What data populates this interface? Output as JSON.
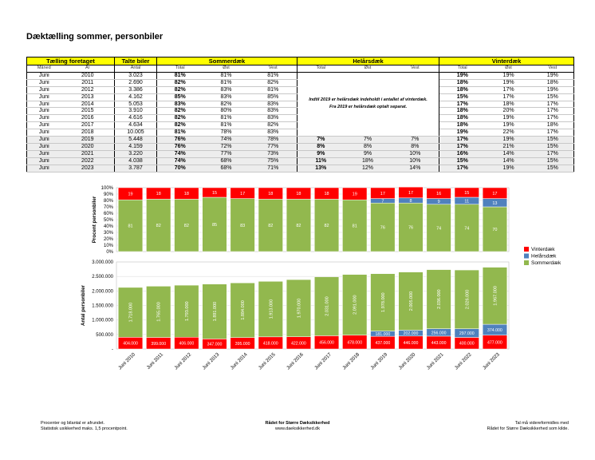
{
  "title": "Dæktælling sommer, personbiler",
  "table": {
    "groups": [
      "Tælling foretaget",
      "Talte biler",
      "Sommerdæk",
      "Helårsdæk",
      "Vinterdæk"
    ],
    "sub": {
      "maaned": "Måned",
      "aar": "År",
      "antal": "Antal",
      "total": "Total",
      "oest": "Øst",
      "vest": "Vest"
    },
    "note_line1": "Indtil 2019 er helårsdæk indeholdt i antallet af vinterdæk.",
    "note_line2": "Fra 2019 er helårsdæk optalt separat.",
    "rows": [
      {
        "m": "Juni",
        "y": "2010",
        "n": "3.023",
        "st": "81%",
        "so": "81%",
        "sv": "81%",
        "ht": "",
        "ho": "",
        "hv": "",
        "vt": "19%",
        "vo": "19%",
        "vv": "19%"
      },
      {
        "m": "Juni",
        "y": "2011",
        "n": "2.690",
        "st": "82%",
        "so": "81%",
        "sv": "82%",
        "ht": "",
        "ho": "",
        "hv": "",
        "vt": "18%",
        "vo": "19%",
        "vv": "18%"
      },
      {
        "m": "Juni",
        "y": "2012",
        "n": "3.386",
        "st": "82%",
        "so": "83%",
        "sv": "81%",
        "ht": "",
        "ho": "",
        "hv": "",
        "vt": "18%",
        "vo": "17%",
        "vv": "19%"
      },
      {
        "m": "Juni",
        "y": "2013",
        "n": "4.162",
        "st": "85%",
        "so": "83%",
        "sv": "85%",
        "ht": "",
        "ho": "",
        "hv": "",
        "vt": "15%",
        "vo": "17%",
        "vv": "15%"
      },
      {
        "m": "Juni",
        "y": "2014",
        "n": "5.053",
        "st": "83%",
        "so": "82%",
        "sv": "83%",
        "ht": "",
        "ho": "",
        "hv": "",
        "vt": "17%",
        "vo": "18%",
        "vv": "17%"
      },
      {
        "m": "Juni",
        "y": "2015",
        "n": "3.910",
        "st": "82%",
        "so": "80%",
        "sv": "83%",
        "ht": "",
        "ho": "",
        "hv": "",
        "vt": "18%",
        "vo": "20%",
        "vv": "17%"
      },
      {
        "m": "Juni",
        "y": "2016",
        "n": "4.616",
        "st": "82%",
        "so": "81%",
        "sv": "83%",
        "ht": "",
        "ho": "",
        "hv": "",
        "vt": "18%",
        "vo": "19%",
        "vv": "17%"
      },
      {
        "m": "Juni",
        "y": "2017",
        "n": "4.634",
        "st": "82%",
        "so": "81%",
        "sv": "82%",
        "ht": "",
        "ho": "",
        "hv": "",
        "vt": "18%",
        "vo": "19%",
        "vv": "18%"
      },
      {
        "m": "Juni",
        "y": "2018",
        "n": "10.005",
        "st": "81%",
        "so": "78%",
        "sv": "83%",
        "ht": "",
        "ho": "",
        "hv": "",
        "vt": "19%",
        "vo": "22%",
        "vv": "17%"
      },
      {
        "m": "Juni",
        "y": "2019",
        "n": "5.448",
        "st": "76%",
        "so": "74%",
        "sv": "78%",
        "ht": "7%",
        "ho": "7%",
        "hv": "7%",
        "vt": "17%",
        "vo": "19%",
        "vv": "15%"
      },
      {
        "m": "Juni",
        "y": "2020",
        "n": "4.159",
        "st": "76%",
        "so": "72%",
        "sv": "77%",
        "ht": "8%",
        "ho": "8%",
        "hv": "8%",
        "vt": "17%",
        "vo": "21%",
        "vv": "15%"
      },
      {
        "m": "Juni",
        "y": "2021",
        "n": "3.220",
        "st": "74%",
        "so": "77%",
        "sv": "73%",
        "ht": "9%",
        "ho": "9%",
        "hv": "10%",
        "vt": "16%",
        "vo": "14%",
        "vv": "17%"
      },
      {
        "m": "Juni",
        "y": "2022",
        "n": "4.038",
        "st": "74%",
        "so": "68%",
        "sv": "75%",
        "ht": "11%",
        "ho": "18%",
        "hv": "10%",
        "vt": "15%",
        "vo": "14%",
        "vv": "15%"
      },
      {
        "m": "Juni",
        "y": "2023",
        "n": "3.787",
        "st": "70%",
        "so": "68%",
        "sv": "71%",
        "ht": "13%",
        "ho": "12%",
        "hv": "14%",
        "vt": "17%",
        "vo": "19%",
        "vv": "15%"
      }
    ]
  },
  "chart_data": [
    {
      "type": "bar",
      "stacked": true,
      "percent": true,
      "ylabel": "Procent personbiler",
      "yticks": [
        "0%",
        "10%",
        "20%",
        "30%",
        "40%",
        "50%",
        "60%",
        "70%",
        "80%",
        "90%",
        "100%"
      ],
      "ylim": [
        0,
        100
      ],
      "categories": [
        "Juni 2010",
        "Juni 2011",
        "Juni 2012",
        "Juni 2013",
        "Juni 2014",
        "Juni 2015",
        "Juni 2016",
        "Juni 2017",
        "Juni 2018",
        "Juni 2019",
        "Juni 2020",
        "Juni 2021",
        "Juni 2022",
        "Juni 2023"
      ],
      "series": [
        {
          "name": "Sommerdæk",
          "color": "#92b84e",
          "values": [
            81,
            82,
            82,
            85,
            83,
            82,
            82,
            82,
            81,
            76,
            76,
            74,
            74,
            70
          ]
        },
        {
          "name": "Helårsdæk",
          "color": "#4f81bd",
          "values": [
            0,
            0,
            0,
            0,
            0,
            0,
            0,
            0,
            0,
            7,
            8,
            9,
            11,
            13
          ]
        },
        {
          "name": "Vinterdæk",
          "color": "#ff0000",
          "values": [
            19,
            18,
            18,
            15,
            17,
            18,
            18,
            18,
            19,
            17,
            17,
            16,
            15,
            17
          ]
        }
      ],
      "labels": [
        {
          "s": [
            "81",
            "",
            "19"
          ]
        },
        {
          "s": [
            "82",
            "",
            "18"
          ]
        },
        {
          "s": [
            "82",
            "",
            "18"
          ]
        },
        {
          "s": [
            "85",
            "",
            "15"
          ]
        },
        {
          "s": [
            "83",
            "",
            "17"
          ]
        },
        {
          "s": [
            "82",
            "",
            "18"
          ]
        },
        {
          "s": [
            "82",
            "",
            "18"
          ]
        },
        {
          "s": [
            "82",
            "",
            "18"
          ]
        },
        {
          "s": [
            "81",
            "",
            "19"
          ]
        },
        {
          "s": [
            "76",
            "7",
            "17"
          ]
        },
        {
          "s": [
            "76",
            "8",
            "17"
          ]
        },
        {
          "s": [
            "74",
            "9",
            "16"
          ]
        },
        {
          "s": [
            "74",
            "11",
            "15"
          ]
        },
        {
          "s": [
            "70",
            "13",
            "17"
          ]
        }
      ]
    },
    {
      "type": "bar",
      "stacked": true,
      "ylabel": "Antal personbiler",
      "yticks": [
        "-",
        "500.000",
        "1.000.000",
        "1.500.000",
        "2.000.000",
        "2.500.000",
        "3.000.000"
      ],
      "ylim": [
        0,
        3000000
      ],
      "categories": [
        "Juni 2010",
        "Juni 2011",
        "Juni 2012",
        "Juni 2013",
        "Juni 2014",
        "Juni 2015",
        "Juni 2016",
        "Juni 2017",
        "Juni 2018",
        "Juni 2019",
        "Juni 2020",
        "Juni 2021",
        "Juni 2022",
        "Juni 2023"
      ],
      "series": [
        {
          "name": "Vinterdæk",
          "color": "#ff0000",
          "values": [
            404000,
            399000,
            406000,
            347000,
            395000,
            418000,
            422000,
            456000,
            478000,
            437000,
            446000,
            443000,
            400000,
            477000
          ],
          "labels": [
            "404.000",
            "399.000",
            "406.000",
            "347.000",
            "395.000",
            "418.000",
            "422.000",
            "456.000",
            "478.000",
            "437.000",
            "446.000",
            "443.000",
            "400.000",
            "477.000"
          ]
        },
        {
          "name": "Helårsdæk",
          "color": "#4f81bd",
          "values": [
            0,
            0,
            0,
            0,
            0,
            0,
            0,
            0,
            0,
            181000,
            202000,
            256000,
            297000,
            374000
          ],
          "labels": [
            "",
            "",
            "",
            "",
            "",
            "",
            "",
            "",
            "",
            "181.000",
            "202.000",
            "256.000",
            "297.000",
            "374.000"
          ]
        },
        {
          "name": "Sommerdæk",
          "color": "#92b84e",
          "values": [
            1718000,
            1765000,
            1793000,
            1891000,
            1884000,
            1913000,
            1970000,
            2031000,
            2091000,
            1978000,
            2005000,
            2036000,
            2026000,
            1967000
          ],
          "labels": [
            "1.718.000",
            "1.765.000",
            "1.793.000",
            "1.891.000",
            "1.884.000",
            "1.913.000",
            "1.970.000",
            "2.031.000",
            "2.091.000",
            "1.978.000",
            "2.005.000",
            "2.036.000",
            "2.026.000",
            "1.967.000"
          ]
        }
      ]
    }
  ],
  "legend": [
    {
      "name": "Vinterdæk",
      "color": "#ff0000"
    },
    {
      "name": "Helårsdæk",
      "color": "#4f81bd"
    },
    {
      "name": "Sommerdæk",
      "color": "#92b84e"
    }
  ],
  "footer": {
    "left1": "Procenter og bilantal er afrundet.",
    "left2": "Statistisk usikkerhed maks. 1,5 procentpoint.",
    "center1": "Rådet for Større Dæksikkerhed",
    "center2": "www.daeksikkerhed.dk",
    "right1": "Tal må videreformidles med",
    "right2": "Rådet for Større Dæksikkerhed som kilde."
  }
}
